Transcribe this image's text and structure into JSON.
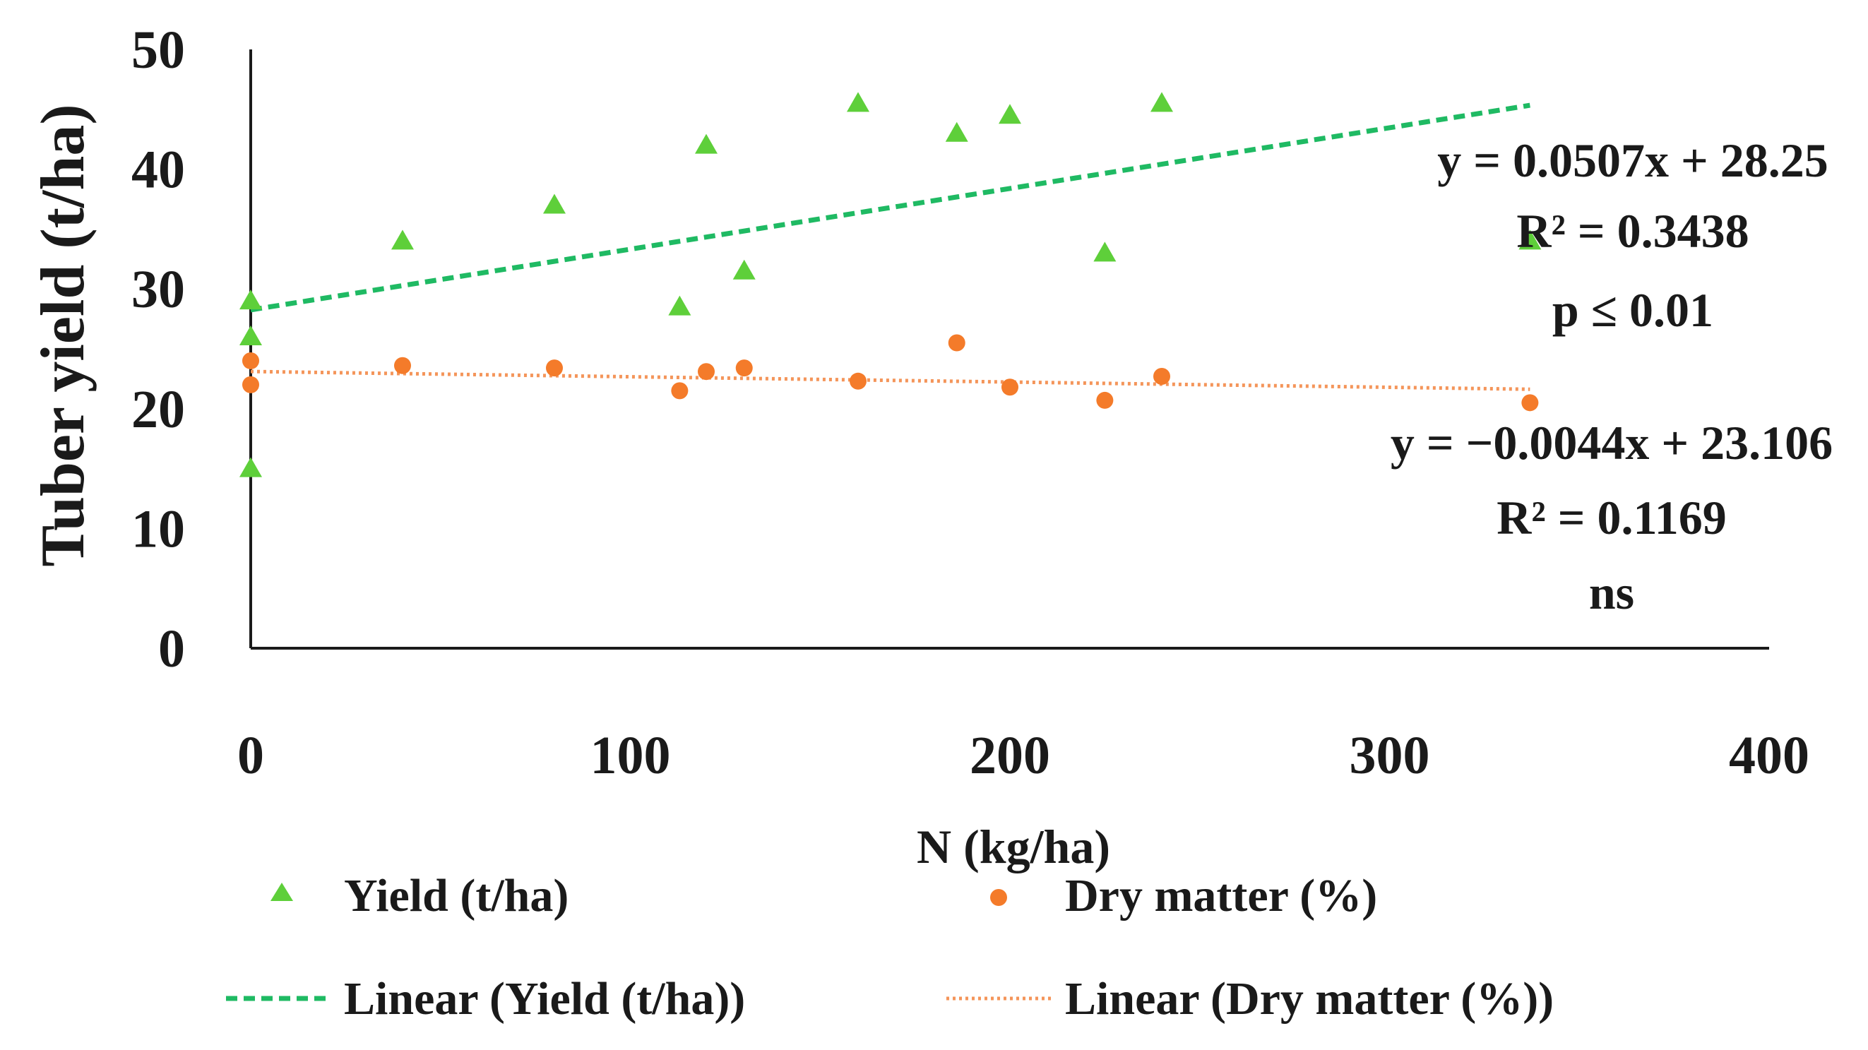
{
  "chart_data": {
    "type": "scatter",
    "title": "",
    "xlabel": "N (kg/ha)",
    "ylabel": "Tuber yield (t/ha)",
    "xlim": [
      0,
      400
    ],
    "ylim": [
      0,
      50
    ],
    "xticks": [
      "0",
      "100",
      "200",
      "300",
      "400"
    ],
    "yticks": [
      "0",
      "10",
      "20",
      "30",
      "40",
      "50"
    ],
    "grid": false,
    "colors": {
      "yield": "#5ecf3a",
      "yield_trend": "#1fba63",
      "dry": "#f47b2a",
      "dry_trend": "#f4955a",
      "axis": "#1a1a1a"
    },
    "series": [
      {
        "name": "Yield (t/ha)",
        "marker": "triangle",
        "points": [
          [
            0,
            15
          ],
          [
            0,
            26
          ],
          [
            0,
            29
          ],
          [
            40,
            34
          ],
          [
            80,
            37
          ],
          [
            113,
            28.5
          ],
          [
            120,
            42
          ],
          [
            130,
            31.5
          ],
          [
            160,
            45.5
          ],
          [
            186,
            43
          ],
          [
            200,
            44.5
          ],
          [
            225,
            33
          ],
          [
            240,
            45.5
          ],
          [
            337,
            34
          ]
        ]
      },
      {
        "name": "Dry matter (%)",
        "marker": "circle",
        "points": [
          [
            0,
            22
          ],
          [
            0,
            24
          ],
          [
            40,
            23.6
          ],
          [
            80,
            23.4
          ],
          [
            113,
            21.5
          ],
          [
            120,
            23.1
          ],
          [
            130,
            23.4
          ],
          [
            160,
            22.3
          ],
          [
            186,
            25.5
          ],
          [
            200,
            21.8
          ],
          [
            225,
            20.7
          ],
          [
            240,
            22.7
          ],
          [
            337,
            20.5
          ]
        ]
      }
    ],
    "trendlines": [
      {
        "name": "Linear (Yield (t/ha))",
        "slope": 0.0507,
        "intercept": 28.25,
        "x_range": [
          0,
          337
        ],
        "style": "dashed"
      },
      {
        "name": "Linear (Dry matter (%))",
        "slope": -0.0044,
        "intercept": 23.106,
        "x_range": [
          0,
          337
        ],
        "style": "dotted"
      }
    ],
    "annotations": {
      "yield": [
        "y = 0.0507x + 28.25",
        "R² = 0.3438",
        "p ≤ 0.01"
      ],
      "dry": [
        "y = −0.0044x + 23.106",
        "R² = 0.1169",
        "ns"
      ]
    },
    "legend": {
      "placement": "bottom",
      "items": [
        "Yield (t/ha)",
        "Dry matter (%)",
        "Linear (Yield (t/ha))",
        "Linear (Dry matter (%))"
      ]
    }
  }
}
